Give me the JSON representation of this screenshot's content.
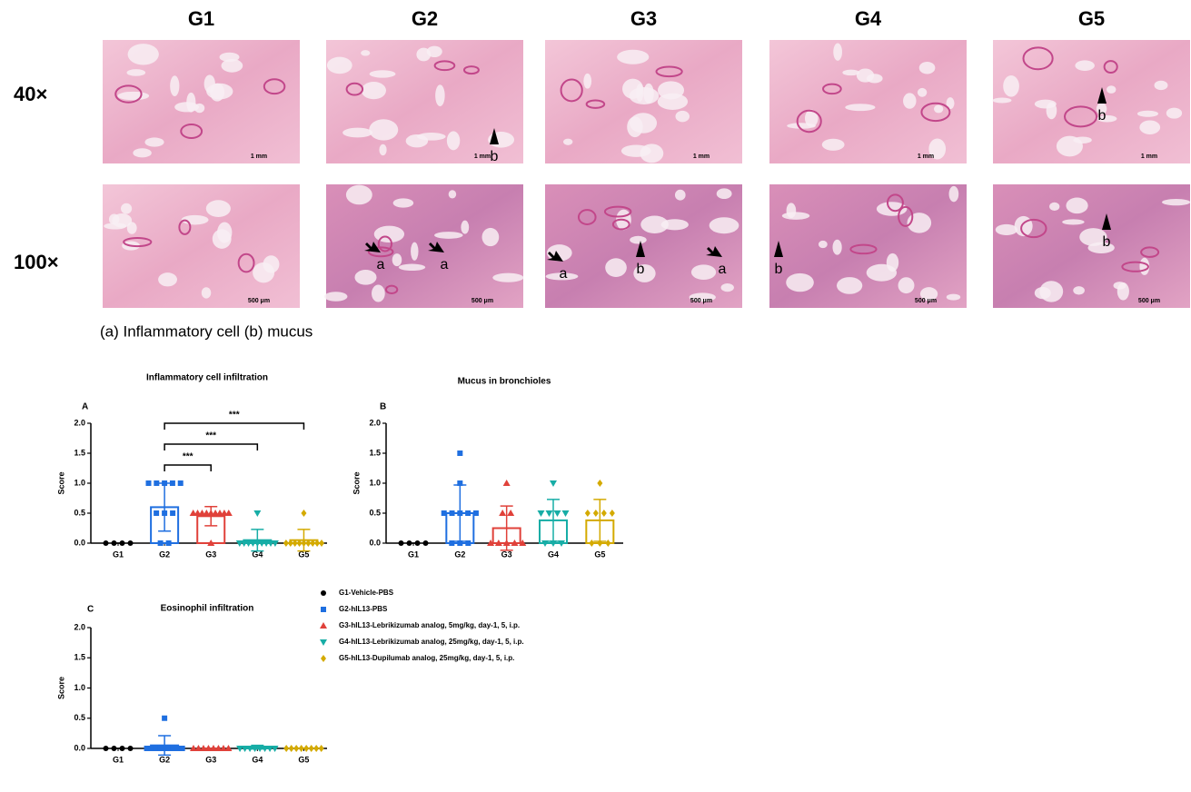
{
  "histology": {
    "columns": [
      "G1",
      "G2",
      "G3",
      "G4",
      "G5"
    ],
    "rows": [
      {
        "label": "40×",
        "cells": [
          {
            "scale": "1 mm",
            "marks": []
          },
          {
            "scale": "1 mm",
            "marks": [
              "b"
            ]
          },
          {
            "scale": "1 mm",
            "marks": []
          },
          {
            "scale": "1 mm",
            "marks": []
          },
          {
            "scale": "1 mm",
            "marks": [
              "b"
            ]
          }
        ]
      },
      {
        "label": "100×",
        "cells": [
          {
            "scale": "500 μm",
            "marks": []
          },
          {
            "scale": "500 μm",
            "marks": [
              "a",
              "a"
            ]
          },
          {
            "scale": "500 μm",
            "marks": [
              "a",
              "b",
              "a"
            ]
          },
          {
            "scale": "500 μm",
            "marks": [
              "b"
            ]
          },
          {
            "scale": "500 μm",
            "marks": [
              "b"
            ]
          }
        ]
      }
    ],
    "caption": "(a) Inflammatory cell (b) mucus"
  },
  "legend": {
    "entries": [
      {
        "label": "G1-Vehicle-PBS",
        "color": "#000000",
        "marker": "circle"
      },
      {
        "label": "G2-hIL13-PBS",
        "color": "#1f6fe0",
        "marker": "square"
      },
      {
        "label": "G3-hIL13-Lebrikizumab analog, 5mg/kg, day-1, 5, i.p.",
        "color": "#e0413a",
        "marker": "triangle"
      },
      {
        "label": "G4-hIL13-Lebrikizumab analog, 25mg/kg, day-1, 5, i.p.",
        "color": "#17ada6",
        "marker": "triangle-down"
      },
      {
        "label": "G5-hIL13-Dupilumab analog, 25mg/kg, day-1, 5, i.p.",
        "color": "#d4aa00",
        "marker": "diamond"
      }
    ]
  },
  "chart_data": [
    {
      "type": "bar",
      "panel": "A",
      "title": "Inflammatory cell infiltration",
      "y_label": "Score",
      "categories": [
        "G1",
        "G2",
        "G3",
        "G4",
        "G5"
      ],
      "values": [
        0,
        0.6,
        0.45,
        0.05,
        0.05
      ],
      "errors": [
        0,
        0.4,
        0.16,
        0.18,
        0.18
      ],
      "points": [
        [
          0,
          0,
          0,
          0
        ],
        [
          1,
          1,
          1,
          1,
          1,
          0.5,
          0.5,
          0.5,
          0,
          0
        ],
        [
          0.5,
          0.5,
          0.5,
          0.5,
          0.5,
          0.5,
          0.5,
          0.5,
          0.5,
          0
        ],
        [
          0.5,
          0,
          0,
          0,
          0,
          0,
          0,
          0,
          0,
          0
        ],
        [
          0.5,
          0,
          0,
          0,
          0,
          0,
          0,
          0,
          0,
          0
        ]
      ],
      "ylim": [
        0,
        2
      ],
      "yticks": [
        {
          "value": 0,
          "label": "0.0"
        },
        0.5,
        {
          "value": 1,
          "label": "1.0"
        },
        1.5,
        {
          "value": 2,
          "label": "2.0"
        }
      ],
      "comparisons": [
        {
          "label": "***",
          "categories": [
            "G2",
            "G3"
          ]
        },
        {
          "label": "***",
          "categories": [
            "G2",
            "G4"
          ]
        },
        {
          "label": "***",
          "categories": [
            "G2",
            "G5"
          ]
        }
      ]
    },
    {
      "type": "bar",
      "panel": "B",
      "title": "Mucus in bronchioles",
      "y_label": "Score",
      "categories": [
        "G1",
        "G2",
        "G3",
        "G4",
        "G5"
      ],
      "values": [
        0,
        0.5,
        0.25,
        0.38,
        0.38
      ],
      "errors": [
        0,
        0.47,
        0.37,
        0.35,
        0.35
      ],
      "points": [
        [
          0,
          0,
          0,
          0
        ],
        [
          1.5,
          1,
          0.5,
          0.5,
          0.5,
          0.5,
          0.5,
          0,
          0,
          0
        ],
        [
          1,
          0.5,
          0.5,
          0,
          0,
          0,
          0,
          0
        ],
        [
          1,
          0.5,
          0.5,
          0.5,
          0.5,
          0,
          0,
          0
        ],
        [
          1,
          0.5,
          0.5,
          0.5,
          0.5,
          0,
          0,
          0
        ]
      ],
      "ylim": [
        0,
        2
      ],
      "yticks": [
        {
          "value": 0,
          "label": "0.0"
        },
        0.5,
        {
          "value": 1,
          "label": "1.0"
        },
        1.5,
        {
          "value": 2,
          "label": "2.0"
        }
      ]
    },
    {
      "type": "bar",
      "panel": "C",
      "title": "Eosinophil infiltration",
      "y_label": "Score",
      "categories": [
        "G1",
        "G2",
        "G3",
        "G4",
        "G5"
      ],
      "values": [
        0,
        0.05,
        0,
        0.02,
        0
      ],
      "errors": [
        0,
        0.16,
        0,
        0.03,
        0
      ],
      "points": [
        [
          0,
          0,
          0,
          0
        ],
        [
          0.5,
          0,
          0,
          0,
          0,
          0,
          0,
          0,
          0,
          0
        ],
        [
          0,
          0,
          0,
          0,
          0,
          0,
          0,
          0
        ],
        [
          0,
          0,
          0,
          0,
          0,
          0,
          0,
          0
        ],
        [
          0,
          0,
          0,
          0,
          0,
          0,
          0,
          0
        ]
      ],
      "ylim": [
        0,
        2
      ],
      "yticks": [
        {
          "value": 0,
          "label": "0.0"
        },
        0.5,
        {
          "value": 1,
          "label": "1.0"
        },
        1.5,
        {
          "value": 2,
          "label": "2.0"
        }
      ]
    }
  ]
}
